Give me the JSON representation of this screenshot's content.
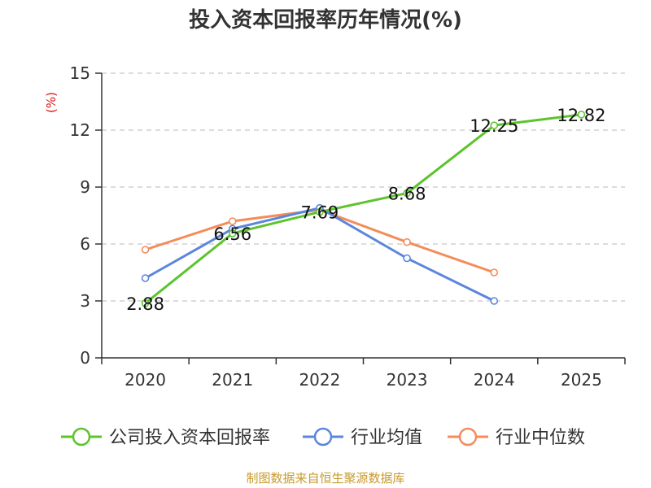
{
  "chart_data": {
    "type": "line",
    "title": "投入资本回报率历年情况(%)",
    "unit_label": "(%)",
    "categories": [
      "2020",
      "2021",
      "2022",
      "2023",
      "2024",
      "2025"
    ],
    "ylim": [
      0,
      15
    ],
    "yticks": [
      0,
      3,
      6,
      9,
      12,
      15
    ],
    "grid": true,
    "legend_position": "bottom",
    "series": [
      {
        "name": "公司投入资本回报率",
        "color": "#5cc42d",
        "values": [
          2.88,
          6.56,
          7.69,
          8.68,
          12.25,
          12.82
        ],
        "labels": [
          "2.88",
          "6.56",
          "7.69",
          "8.68",
          "12.25",
          "12.82"
        ]
      },
      {
        "name": "行业均值",
        "color": "#5b86dc",
        "values": [
          4.2,
          6.8,
          7.9,
          5.25,
          3.0,
          null
        ]
      },
      {
        "name": "行业中位数",
        "color": "#f48c5a",
        "values": [
          5.7,
          7.2,
          7.8,
          6.1,
          4.5,
          null
        ]
      }
    ]
  },
  "source": "制图数据来自恒生聚源数据库"
}
